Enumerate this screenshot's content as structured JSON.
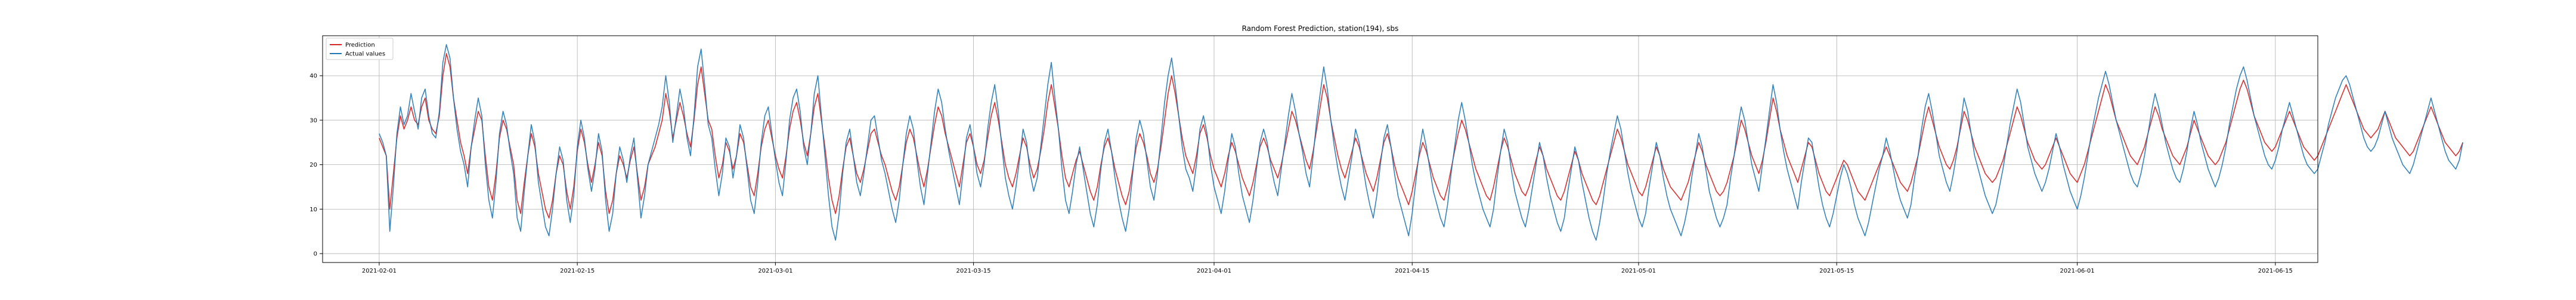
{
  "chart_data": {
    "type": "line",
    "title": "Random Forest Prediction, station(194), sbs",
    "xlabel": "",
    "ylabel": "",
    "x_range": [
      "2021-01-28",
      "2021-06-18"
    ],
    "x_ticks": [
      "2021-02-01",
      "2021-02-15",
      "2021-03-01",
      "2021-03-15",
      "2021-04-01",
      "2021-04-15",
      "2021-05-01",
      "2021-05-15",
      "2021-06-01",
      "2021-06-15"
    ],
    "ylim": [
      -2,
      49
    ],
    "y_ticks": [
      0,
      10,
      20,
      30,
      40
    ],
    "grid": true,
    "legend": "top-left",
    "x_start": "2021-02-01",
    "x_step_days": 0.25,
    "series": [
      {
        "name": "Prediction",
        "color": "#d62728",
        "values": [
          26,
          24,
          22,
          10,
          18,
          26,
          31,
          28,
          30,
          33,
          30,
          29,
          33,
          35,
          30,
          28,
          27,
          31,
          40,
          45,
          42,
          35,
          30,
          25,
          22,
          18,
          24,
          28,
          32,
          30,
          22,
          15,
          12,
          18,
          26,
          30,
          28,
          24,
          20,
          12,
          9,
          16,
          22,
          27,
          24,
          18,
          14,
          10,
          8,
          12,
          18,
          22,
          20,
          14,
          10,
          15,
          23,
          28,
          25,
          20,
          16,
          20,
          25,
          22,
          14,
          9,
          12,
          18,
          22,
          20,
          17,
          21,
          24,
          18,
          12,
          15,
          20,
          22,
          24,
          27,
          30,
          36,
          32,
          26,
          30,
          34,
          31,
          27,
          24,
          30,
          38,
          42,
          36,
          30,
          28,
          22,
          17,
          20,
          25,
          23,
          19,
          22,
          27,
          25,
          20,
          15,
          13,
          18,
          24,
          28,
          30,
          26,
          22,
          19,
          17,
          22,
          28,
          32,
          34,
          30,
          25,
          22,
          27,
          33,
          36,
          30,
          24,
          17,
          12,
          9,
          13,
          19,
          24,
          26,
          22,
          18,
          16,
          19,
          23,
          27,
          28,
          25,
          22,
          20,
          17,
          14,
          12,
          15,
          20,
          25,
          28,
          26,
          22,
          18,
          15,
          19,
          24,
          29,
          33,
          31,
          27,
          24,
          21,
          18,
          15,
          20,
          25,
          27,
          24,
          20,
          18,
          21,
          26,
          31,
          34,
          30,
          25,
          20,
          17,
          15,
          18,
          22,
          26,
          24,
          20,
          17,
          19,
          23,
          28,
          34,
          38,
          33,
          28,
          22,
          17,
          15,
          18,
          21,
          23,
          20,
          17,
          14,
          12,
          15,
          20,
          24,
          26,
          23,
          19,
          16,
          13,
          11,
          14,
          19,
          24,
          27,
          25,
          22,
          18,
          16,
          19,
          24,
          30,
          36,
          40,
          36,
          31,
          26,
          22,
          20,
          18,
          22,
          27,
          29,
          26,
          22,
          19,
          17,
          15,
          18,
          22,
          25,
          23,
          20,
          17,
          15,
          13,
          16,
          20,
          24,
          26,
          24,
          21,
          19,
          17,
          20,
          24,
          28,
          32,
          30,
          27,
          24,
          21,
          19,
          23,
          28,
          33,
          38,
          35,
          30,
          26,
          22,
          19,
          17,
          20,
          23,
          26,
          24,
          21,
          18,
          16,
          14,
          17,
          21,
          25,
          27,
          24,
          20,
          17,
          15,
          13,
          11,
          14,
          18,
          22,
          25,
          23,
          20,
          17,
          15,
          13,
          12,
          15,
          19,
          23,
          27,
          30,
          28,
          25,
          22,
          19,
          17,
          15,
          13,
          12,
          15,
          19,
          23,
          26,
          24,
          21,
          18,
          16,
          14,
          13,
          15,
          18,
          21,
          24,
          22,
          19,
          17,
          15,
          13,
          12,
          14,
          17,
          20,
          23,
          21,
          18,
          16,
          14,
          12,
          11,
          13,
          16,
          19,
          22,
          25,
          28,
          26,
          23,
          20,
          18,
          16,
          14,
          13,
          15,
          18,
          21,
          24,
          22,
          19,
          17,
          15,
          14,
          13,
          12,
          14,
          16,
          19,
          22,
          25,
          23,
          20,
          18,
          16,
          14,
          13,
          14,
          16,
          19,
          22,
          26,
          30,
          28,
          25,
          22,
          20,
          18,
          21,
          25,
          30,
          35,
          32,
          28,
          25,
          22,
          20,
          18,
          16,
          19,
          22,
          25,
          24,
          21,
          18,
          16,
          14,
          13,
          15,
          17,
          19,
          21,
          20,
          18,
          16,
          14,
          13,
          12,
          14,
          16,
          18,
          20,
          22,
          24,
          22,
          20,
          18,
          16,
          15,
          14,
          16,
          19,
          22,
          26,
          30,
          33,
          30,
          27,
          24,
          22,
          20,
          19,
          21,
          24,
          28,
          32,
          30,
          27,
          24,
          22,
          20,
          18,
          17,
          16,
          17,
          19,
          21,
          24,
          27,
          30,
          33,
          31,
          28,
          25,
          23,
          21,
          20,
          19,
          20,
          22,
          24,
          26,
          24,
          22,
          20,
          18,
          17,
          16,
          18,
          20,
          23,
          26,
          29,
          32,
          35,
          38,
          36,
          33,
          30,
          28,
          26,
          24,
          22,
          21,
          20,
          22,
          24,
          27,
          30,
          33,
          31,
          28,
          26,
          24,
          22,
          21,
          20,
          22,
          24,
          27,
          30,
          28,
          26,
          24,
          22,
          21,
          20,
          21,
          23,
          25,
          28,
          31,
          34,
          37,
          39,
          37,
          34,
          31,
          29,
          27,
          25,
          24,
          23,
          24,
          26,
          28,
          30,
          32,
          30,
          28,
          26,
          24,
          23,
          22,
          21,
          22,
          24,
          26,
          28,
          30,
          32,
          34,
          36,
          38,
          36,
          34,
          32,
          30,
          28,
          27,
          26,
          27,
          28,
          30,
          32,
          30,
          28,
          26,
          25,
          24,
          23,
          22,
          23,
          25,
          27,
          29,
          31,
          33,
          31,
          29,
          27,
          25,
          24,
          23,
          22,
          23,
          25
        ]
      },
      {
        "name": "Actual values",
        "color": "#1f77b4",
        "values": [
          27,
          25,
          22,
          5,
          15,
          27,
          33,
          29,
          31,
          36,
          32,
          28,
          35,
          37,
          31,
          27,
          26,
          32,
          43,
          47,
          44,
          35,
          28,
          23,
          20,
          15,
          24,
          30,
          35,
          31,
          20,
          12,
          8,
          16,
          27,
          32,
          29,
          23,
          18,
          8,
          5,
          14,
          22,
          29,
          25,
          16,
          11,
          6,
          4,
          10,
          18,
          24,
          21,
          12,
          7,
          13,
          24,
          30,
          26,
          19,
          14,
          19,
          27,
          23,
          12,
          5,
          9,
          18,
          24,
          21,
          16,
          22,
          26,
          17,
          8,
          13,
          20,
          23,
          26,
          29,
          33,
          40,
          34,
          25,
          31,
          37,
          33,
          26,
          22,
          31,
          42,
          46,
          38,
          29,
          26,
          19,
          13,
          18,
          26,
          24,
          17,
          22,
          29,
          26,
          19,
          12,
          9,
          16,
          25,
          31,
          33,
          27,
          21,
          16,
          13,
          21,
          30,
          35,
          37,
          32,
          24,
          20,
          27,
          36,
          40,
          31,
          22,
          13,
          6,
          3,
          9,
          18,
          25,
          28,
          22,
          16,
          13,
          18,
          24,
          30,
          31,
          26,
          21,
          18,
          14,
          10,
          7,
          12,
          20,
          27,
          31,
          28,
          21,
          15,
          11,
          18,
          25,
          32,
          37,
          34,
          28,
          23,
          19,
          15,
          11,
          18,
          26,
          29,
          24,
          18,
          15,
          20,
          28,
          34,
          38,
          32,
          24,
          17,
          13,
          10,
          15,
          21,
          28,
          25,
          18,
          14,
          17,
          24,
          31,
          38,
          43,
          35,
          28,
          19,
          12,
          9,
          14,
          20,
          24,
          19,
          14,
          9,
          6,
          11,
          19,
          25,
          28,
          23,
          17,
          12,
          8,
          5,
          10,
          18,
          26,
          30,
          27,
          21,
          15,
          12,
          18,
          26,
          34,
          40,
          44,
          38,
          31,
          24,
          19,
          17,
          14,
          20,
          28,
          31,
          27,
          20,
          15,
          12,
          9,
          14,
          21,
          27,
          24,
          18,
          13,
          10,
          7,
          12,
          19,
          25,
          28,
          25,
          20,
          16,
          13,
          19,
          25,
          31,
          36,
          32,
          27,
          23,
          18,
          15,
          22,
          30,
          36,
          42,
          37,
          30,
          24,
          19,
          15,
          12,
          17,
          22,
          28,
          25,
          20,
          15,
          11,
          8,
          13,
          20,
          26,
          29,
          24,
          18,
          13,
          10,
          7,
          4,
          9,
          16,
          23,
          28,
          24,
          19,
          14,
          11,
          8,
          6,
          11,
          18,
          24,
          30,
          34,
          30,
          25,
          20,
          16,
          13,
          10,
          8,
          6,
          10,
          17,
          23,
          28,
          25,
          19,
          14,
          11,
          8,
          6,
          10,
          15,
          20,
          25,
          22,
          17,
          13,
          10,
          7,
          5,
          8,
          14,
          19,
          24,
          21,
          16,
          12,
          8,
          5,
          3,
          7,
          12,
          18,
          23,
          27,
          31,
          28,
          23,
          18,
          14,
          11,
          8,
          6,
          9,
          15,
          20,
          25,
          22,
          17,
          13,
          10,
          8,
          6,
          4,
          7,
          11,
          17,
          22,
          27,
          24,
          19,
          14,
          11,
          8,
          6,
          8,
          11,
          17,
          22,
          28,
          33,
          30,
          25,
          20,
          17,
          14,
          20,
          26,
          32,
          38,
          34,
          28,
          23,
          19,
          16,
          13,
          10,
          16,
          21,
          26,
          25,
          20,
          15,
          11,
          8,
          6,
          9,
          13,
          17,
          20,
          18,
          15,
          11,
          8,
          6,
          4,
          7,
          11,
          15,
          19,
          22,
          26,
          23,
          19,
          15,
          12,
          10,
          8,
          11,
          17,
          22,
          28,
          33,
          36,
          32,
          27,
          22,
          19,
          16,
          14,
          18,
          23,
          29,
          35,
          32,
          27,
          22,
          19,
          16,
          13,
          11,
          9,
          11,
          15,
          19,
          24,
          29,
          33,
          37,
          34,
          29,
          24,
          21,
          18,
          16,
          14,
          16,
          19,
          23,
          27,
          24,
          20,
          17,
          14,
          12,
          10,
          13,
          17,
          22,
          27,
          31,
          35,
          38,
          41,
          38,
          34,
          30,
          27,
          24,
          21,
          18,
          16,
          15,
          18,
          22,
          27,
          32,
          36,
          33,
          29,
          25,
          22,
          19,
          17,
          16,
          19,
          23,
          28,
          32,
          29,
          25,
          22,
          19,
          17,
          15,
          17,
          20,
          24,
          29,
          33,
          37,
          40,
          42,
          39,
          35,
          31,
          28,
          25,
          22,
          20,
          19,
          21,
          24,
          28,
          31,
          34,
          31,
          28,
          25,
          22,
          20,
          19,
          18,
          19,
          22,
          25,
          29,
          32,
          35,
          37,
          39,
          40,
          38,
          35,
          32,
          29,
          26,
          24,
          23,
          24,
          26,
          29,
          32,
          29,
          26,
          24,
          22,
          20,
          19,
          18,
          20,
          23,
          26,
          29,
          32,
          35,
          32,
          29,
          26,
          23,
          21,
          20,
          19,
          21,
          25
        ]
      }
    ]
  }
}
